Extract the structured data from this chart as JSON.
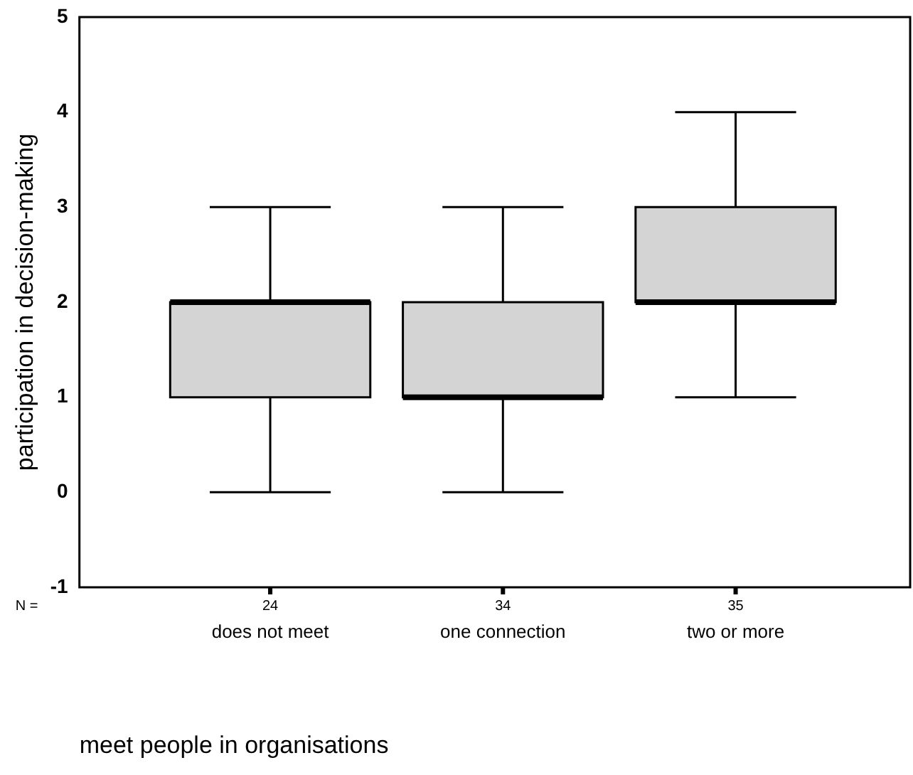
{
  "chart_data": {
    "type": "box",
    "xlabel": "meet people in organisations",
    "ylabel": "participation in decision-making",
    "categories": [
      "does not meet",
      "one connection",
      "two or more"
    ],
    "boxes": [
      {
        "low": 0,
        "q1": 1,
        "median": 2,
        "q3": 2,
        "high": 3
      },
      {
        "low": 0,
        "q1": 1,
        "median": 1,
        "q3": 2,
        "high": 3
      },
      {
        "low": 1,
        "q1": 2,
        "median": 2,
        "q3": 3,
        "high": 4
      }
    ],
    "color": "#d4d4d4",
    "ylim": [
      -1,
      5
    ],
    "yticks": [
      -1,
      0,
      1,
      2,
      3,
      4,
      5
    ],
    "annotations": [
      "N =",
      "24",
      "34",
      "35"
    ],
    "grid": false,
    "legend": false
  }
}
